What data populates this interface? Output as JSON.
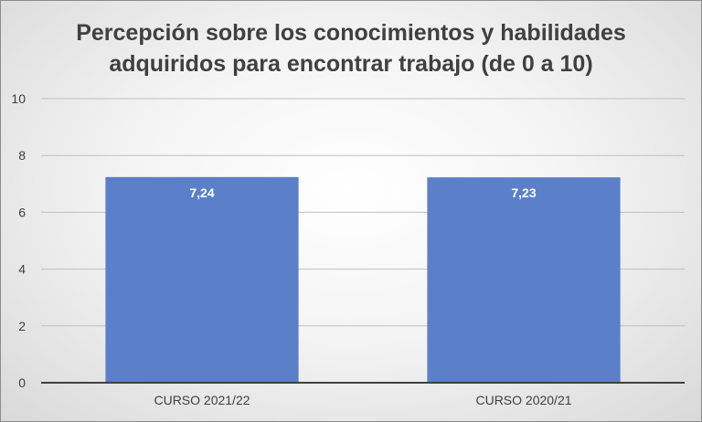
{
  "chart_data": {
    "type": "bar",
    "title_lines": [
      "Percepción sobre los conocimientos y habilidades",
      "adquiridos para encontrar trabajo (de 0 a 10)"
    ],
    "categories": [
      "CURSO 2021/22",
      "CURSO 2020/21"
    ],
    "values": [
      7.24,
      7.23
    ],
    "value_labels": [
      "7,24",
      "7,23"
    ],
    "ylim": [
      0,
      10
    ],
    "yticks": [
      0,
      2,
      4,
      6,
      8,
      10
    ],
    "ytick_labels": [
      "0",
      "2",
      "4",
      "6",
      "8",
      "10"
    ],
    "grid": true,
    "legend": "none",
    "colors": {
      "bar": "#5b7fc9",
      "grid": "#bfbfbf",
      "axis": "#404040"
    }
  }
}
